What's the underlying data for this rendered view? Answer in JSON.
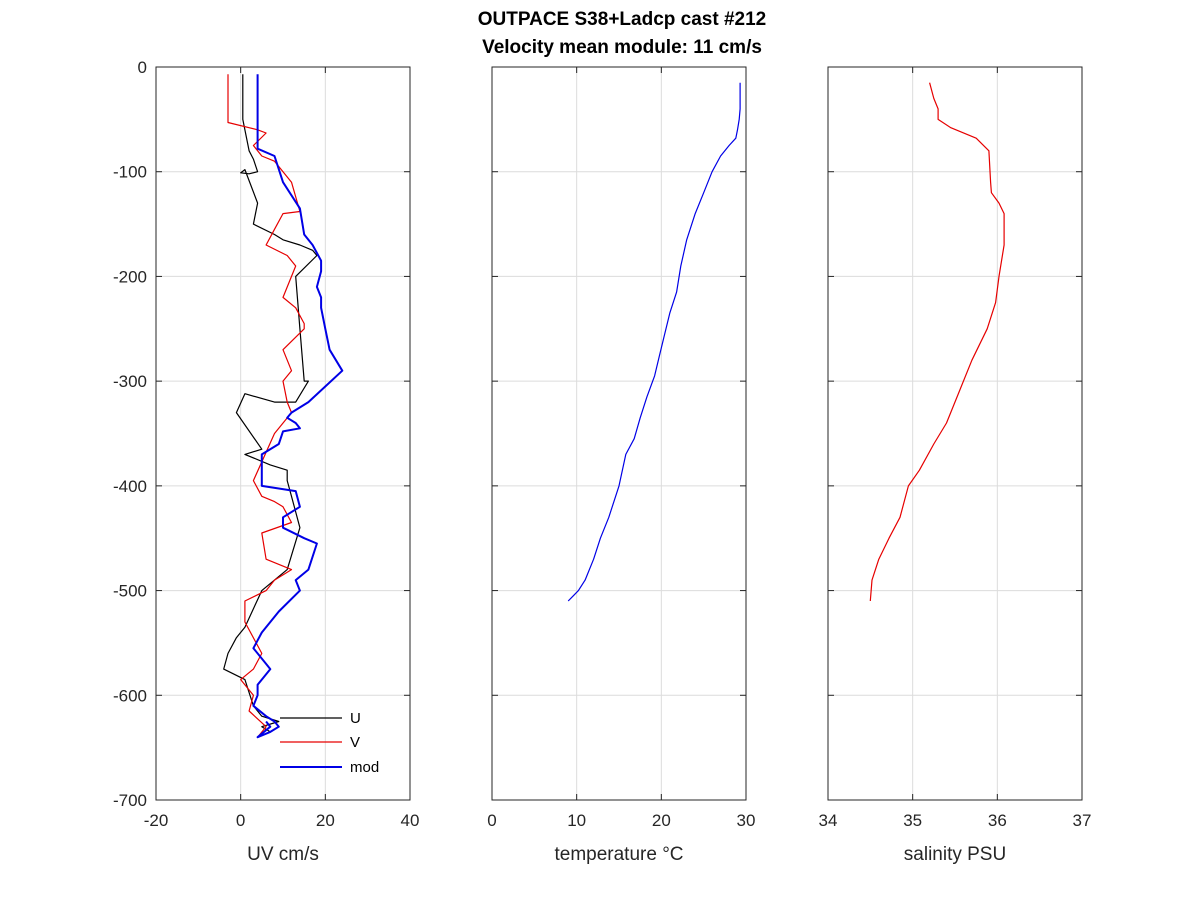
{
  "title": {
    "line1": "OUTPACE S38+Ladcp cast #212",
    "line2": "Velocity mean module:  11 cm/s"
  },
  "chart_data": [
    {
      "type": "line",
      "xlabel": "UV cm/s",
      "ylabel": "",
      "xlim": [
        -20,
        40
      ],
      "ylim": [
        -700,
        0
      ],
      "xticks": [
        -20,
        0,
        20,
        40
      ],
      "yticks": [
        0,
        -100,
        -200,
        -300,
        -400,
        -500,
        -600,
        -700
      ],
      "grid": true,
      "legend_location": "bottom-right",
      "series": [
        {
          "name": "U",
          "color": "#000000",
          "x": [
            0.5,
            0.5,
            2,
            3,
            4,
            2,
            0,
            1,
            4,
            3,
            8,
            10,
            14,
            17,
            18,
            13,
            14,
            15,
            16,
            13,
            8,
            1,
            -1,
            5,
            1,
            7,
            11,
            11,
            12,
            14,
            11,
            8,
            5,
            1,
            -1,
            -3,
            -4,
            1,
            3,
            5,
            9,
            5,
            7
          ],
          "y": [
            -7,
            -50,
            -80,
            -88,
            -100,
            -102,
            -101,
            -98,
            -130,
            -150,
            -160,
            -165,
            -170,
            -175,
            -180,
            -200,
            -250,
            -300,
            -300,
            -320,
            -320,
            -312,
            -330,
            -365,
            -370,
            -380,
            -385,
            -395,
            -410,
            -440,
            -480,
            -490,
            -500,
            -535,
            -545,
            -560,
            -575,
            -585,
            -610,
            -620,
            -625,
            -630,
            -635
          ]
        },
        {
          "name": "V",
          "color": "#e60000",
          "x": [
            -3,
            -3,
            4,
            6,
            3,
            5,
            8,
            12,
            14,
            10,
            8,
            6,
            11,
            13,
            12,
            10,
            13,
            15,
            15,
            10,
            12,
            10,
            11,
            12,
            8,
            3,
            5,
            8,
            10,
            12,
            5,
            6,
            12,
            8,
            6,
            1,
            1,
            5,
            3,
            0,
            3,
            2,
            6,
            4
          ],
          "y": [
            -7,
            -53,
            -60,
            -63,
            -75,
            -85,
            -90,
            -110,
            -138,
            -140,
            -155,
            -170,
            -180,
            -190,
            -200,
            -220,
            -230,
            -245,
            -250,
            -270,
            -290,
            -300,
            -320,
            -330,
            -350,
            -395,
            -410,
            -415,
            -420,
            -435,
            -445,
            -470,
            -480,
            -490,
            -500,
            -510,
            -530,
            -560,
            -575,
            -585,
            -600,
            -615,
            -630,
            -640
          ]
        },
        {
          "name": "mod",
          "color": "#0000e6",
          "x": [
            4,
            4,
            4,
            4,
            8,
            10,
            14,
            15,
            17,
            19,
            19,
            18,
            19,
            19,
            20,
            21,
            24,
            16,
            12,
            11,
            13,
            14,
            10,
            9,
            5,
            5,
            13,
            14,
            10,
            10,
            15,
            18,
            16,
            13,
            14,
            9,
            5,
            3,
            6,
            7,
            4,
            4,
            3,
            6,
            8,
            9,
            7,
            4,
            7,
            6
          ],
          "y": [
            -7,
            -50,
            -70,
            -78,
            -85,
            -110,
            -135,
            -160,
            -170,
            -185,
            -195,
            -210,
            -220,
            -230,
            -250,
            -270,
            -290,
            -320,
            -330,
            -335,
            -340,
            -345,
            -348,
            -360,
            -370,
            -400,
            -405,
            -420,
            -430,
            -440,
            -450,
            -455,
            -480,
            -490,
            -500,
            -520,
            -540,
            -555,
            -570,
            -575,
            -590,
            -600,
            -610,
            -620,
            -625,
            -630,
            -635,
            -640,
            -630,
            -625
          ]
        }
      ]
    },
    {
      "type": "line",
      "xlabel": "temperature °C",
      "ylabel": "",
      "xlim": [
        0,
        30
      ],
      "ylim": [
        -700,
        0
      ],
      "xticks": [
        0,
        10,
        20,
        30
      ],
      "yticks": [
        0,
        -100,
        -200,
        -300,
        -400,
        -500,
        -600,
        -700
      ],
      "grid": true,
      "series": [
        {
          "color": "#0000e6",
          "x": [
            29.3,
            29.3,
            29.3,
            29.2,
            29.0,
            28.8,
            28.0,
            27.0,
            26.0,
            25.0,
            24.0,
            23.0,
            22.3,
            21.8,
            21.0,
            20.4,
            19.8,
            19.2,
            18.3,
            17.5,
            16.8,
            15.8,
            15.0,
            13.8,
            12.8,
            12.0,
            11.0,
            10.2,
            9.6,
            9.0
          ],
          "y": [
            -15,
            -25,
            -40,
            -50,
            -60,
            -68,
            -75,
            -85,
            -100,
            -120,
            -140,
            -165,
            -190,
            -215,
            -235,
            -255,
            -275,
            -295,
            -315,
            -335,
            -355,
            -370,
            -400,
            -430,
            -450,
            -470,
            -490,
            -500,
            -505,
            -510
          ]
        }
      ]
    },
    {
      "type": "line",
      "xlabel": "salinity PSU",
      "ylabel": "",
      "xlim": [
        34,
        37
      ],
      "ylim": [
        -700,
        0
      ],
      "xticks": [
        34,
        35,
        36,
        37
      ],
      "yticks": [
        0,
        -100,
        -200,
        -300,
        -400,
        -500,
        -600,
        -700
      ],
      "grid": true,
      "series": [
        {
          "color": "#e60000",
          "x": [
            35.2,
            35.25,
            35.3,
            35.3,
            35.45,
            35.75,
            35.9,
            35.92,
            35.93,
            36.02,
            36.08,
            36.08,
            36.02,
            35.98,
            35.88,
            35.7,
            35.55,
            35.4,
            35.25,
            35.08,
            34.95,
            34.85,
            34.72,
            34.6,
            34.52,
            34.5
          ],
          "y": [
            -15,
            -30,
            -40,
            -50,
            -58,
            -68,
            -80,
            -110,
            -120,
            -130,
            -140,
            -170,
            -200,
            -225,
            -250,
            -280,
            -310,
            -340,
            -360,
            -385,
            -400,
            -430,
            -450,
            -470,
            -490,
            -510
          ]
        }
      ]
    }
  ]
}
